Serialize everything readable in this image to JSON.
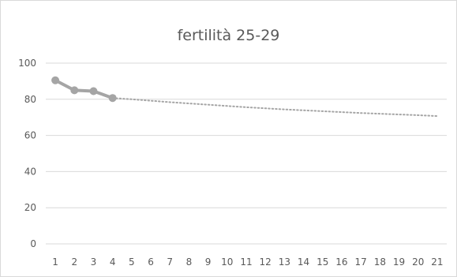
{
  "chart_data": {
    "type": "line",
    "title": "fertilità 25-29",
    "xlabel": "",
    "ylabel": "",
    "x": [
      1,
      2,
      3,
      4,
      5,
      6,
      7,
      8,
      9,
      10,
      11,
      12,
      13,
      14,
      15,
      16,
      17,
      18,
      19,
      20,
      21
    ],
    "ylim": [
      0,
      100
    ],
    "yticks": [
      0,
      20,
      40,
      60,
      80,
      100
    ],
    "grid": true,
    "legend": "none",
    "series": [
      {
        "style": "solid-with-markers",
        "color": "#a5a5a5",
        "points": [
          [
            1,
            90.5
          ],
          [
            2,
            85.0
          ],
          [
            3,
            84.5
          ],
          [
            4,
            80.7
          ]
        ]
      },
      {
        "style": "dotted-trend",
        "color": "#a5a5a5",
        "points": [
          [
            4,
            80.7
          ],
          [
            5,
            80.0
          ],
          [
            6,
            79.2
          ],
          [
            7,
            78.4
          ],
          [
            8,
            77.7
          ],
          [
            9,
            77.0
          ],
          [
            10,
            76.3
          ],
          [
            11,
            75.6
          ],
          [
            12,
            75.0
          ],
          [
            13,
            74.4
          ],
          [
            14,
            73.9
          ],
          [
            15,
            73.4
          ],
          [
            16,
            72.9
          ],
          [
            17,
            72.4
          ],
          [
            18,
            72.0
          ],
          [
            19,
            71.6
          ],
          [
            20,
            71.2
          ],
          [
            21,
            70.7
          ]
        ]
      }
    ]
  }
}
